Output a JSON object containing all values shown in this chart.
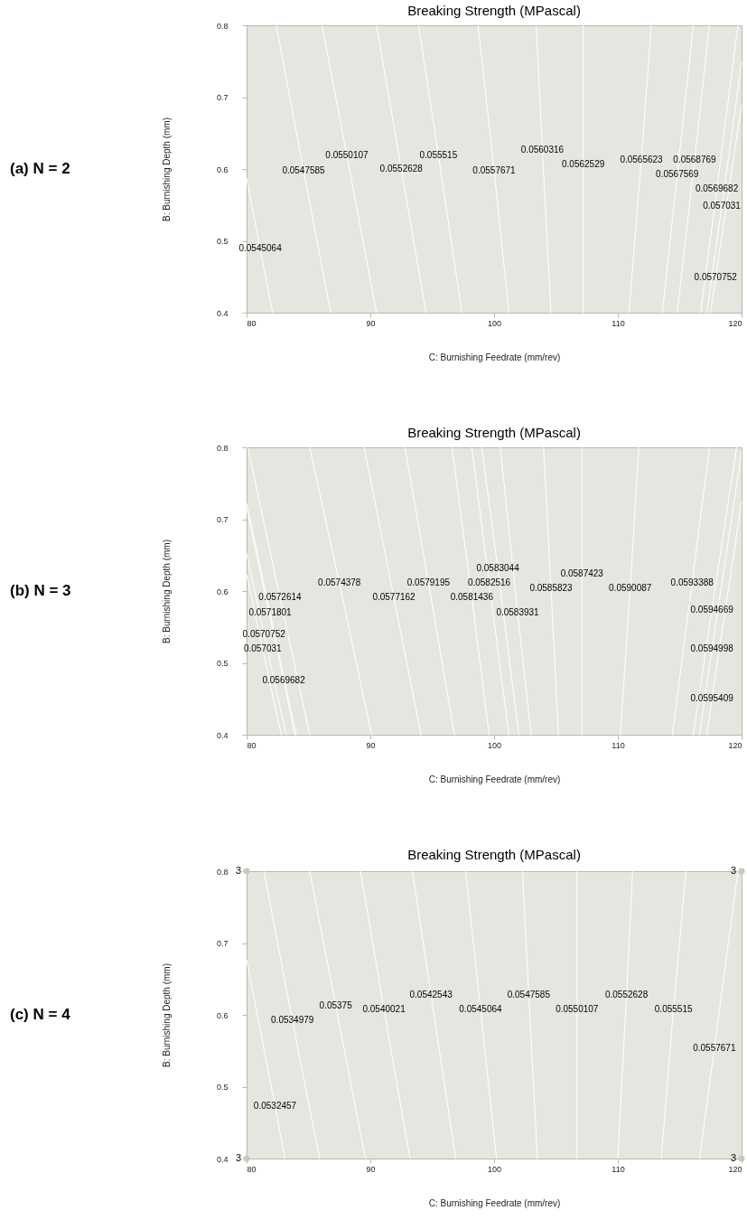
{
  "chart_data": [
    {
      "type": "line",
      "title": "Breaking Strength (MPascal)",
      "xlabel": "C: Burnishing Feedrate (mm/rev)",
      "ylabel": "B: Burnishing Depth (mm)",
      "xlim": [
        80,
        120
      ],
      "xticks": [
        80,
        90,
        100,
        110,
        120
      ],
      "ylim": [
        0.4,
        0.8
      ],
      "yticks": [
        0.4,
        0.5,
        0.6,
        0.7,
        0.8
      ],
      "marker": "none",
      "series": [
        {
          "color": "#ffffff",
          "x": [
            82.1,
            81.1,
            80
          ],
          "values": [
            0.4,
            0.489,
            0.587
          ]
        },
        {
          "color": "#ffffff",
          "x": [
            86.8,
            84.6,
            82.4
          ],
          "values": [
            0.4,
            0.598,
            0.8
          ]
        },
        {
          "color": "#ffffff",
          "x": [
            90.5,
            88.1,
            86.1
          ],
          "values": [
            0.4,
            0.619,
            0.8
          ]
        },
        {
          "color": "#ffffff",
          "x": [
            94.5,
            92.5,
            90.5
          ],
          "values": [
            0.4,
            0.6,
            0.8
          ]
        },
        {
          "color": "#ffffff",
          "x": [
            97.4,
            95.5,
            93.9
          ],
          "values": [
            0.4,
            0.619,
            0.8
          ]
        },
        {
          "color": "#ffffff",
          "x": [
            101.2,
            100,
            98.7
          ],
          "values": [
            0.4,
            0.598,
            0.8
          ]
        },
        {
          "color": "#ffffff",
          "x": [
            104.6,
            103.9,
            103.4
          ],
          "values": [
            0.4,
            0.627,
            0.8
          ]
        },
        {
          "color": "#ffffff",
          "x": [
            107.2,
            107.2,
            107.2
          ],
          "values": [
            0.4,
            0.606,
            0.8
          ]
        },
        {
          "color": "#ffffff",
          "x": [
            110.9,
            111.9,
            112.7
          ],
          "values": [
            0.4,
            0.613,
            0.8
          ]
        },
        {
          "color": "#ffffff",
          "x": [
            113.6,
            114.8,
            116.1
          ],
          "values": [
            0.4,
            0.592,
            0.8
          ]
        },
        {
          "color": "#ffffff",
          "x": [
            114.8,
            116.2,
            117.4
          ],
          "values": [
            0.4,
            0.613,
            0.8
          ]
        },
        {
          "color": "#ffffff",
          "x": [
            116.7,
            118,
            119.7
          ],
          "values": [
            0.4,
            0.572,
            0.8
          ]
        },
        {
          "color": "#ffffff",
          "x": [
            117.2,
            118.4,
            120
          ],
          "values": [
            0.4,
            0.548,
            0.748
          ]
        },
        {
          "color": "#ffffff",
          "x": [
            117.5,
            117.9,
            120
          ],
          "values": [
            0.4,
            0.449,
            0.689
          ]
        }
      ],
      "annotations": [
        "(a)  N = 2",
        {
          "text": "0.0545064",
          "x": 81.1,
          "y": 0.489
        },
        {
          "text": "0.0547585",
          "x": 84.6,
          "y": 0.598
        },
        {
          "text": "0.0550107",
          "x": 88.1,
          "y": 0.619
        },
        {
          "text": "0.0552628",
          "x": 92.5,
          "y": 0.6
        },
        {
          "text": "0.055515",
          "x": 95.5,
          "y": 0.619
        },
        {
          "text": "0.0557671",
          "x": 100,
          "y": 0.598
        },
        {
          "text": "0.0560316",
          "x": 103.9,
          "y": 0.627
        },
        {
          "text": "0.0562529",
          "x": 107.2,
          "y": 0.606
        },
        {
          "text": "0.0565623",
          "x": 111.9,
          "y": 0.613
        },
        {
          "text": "0.0567569",
          "x": 114.8,
          "y": 0.592
        },
        {
          "text": "0.0568769",
          "x": 116.2,
          "y": 0.613
        },
        {
          "text": "0.0569682",
          "x": 118,
          "y": 0.572
        },
        {
          "text": "0.057031",
          "x": 118.4,
          "y": 0.548
        },
        {
          "text": "0.0570752",
          "x": 117.9,
          "y": 0.449
        }
      ]
    },
    {
      "type": "line",
      "title": "Breaking Strength (MPascal)",
      "xlabel": "C: Burnishing Feedrate (mm/rev)",
      "ylabel": "B: Burnishing Depth (mm)",
      "xlim": [
        80,
        120
      ],
      "xticks": [
        80,
        90,
        100,
        110,
        120
      ],
      "ylim": [
        0.4,
        0.8
      ],
      "yticks": [
        0.4,
        0.5,
        0.6,
        0.7,
        0.8
      ],
      "marker": "none",
      "series": [
        {
          "color": "#ffffff",
          "x": [
            83.9,
            83,
            80
          ],
          "values": [
            0.4,
            0.475,
            0.715
          ]
        },
        {
          "color": "#ffffff",
          "x": [
            82.8,
            81.3,
            80
          ],
          "values": [
            0.4,
            0.519,
            0.623
          ]
        },
        {
          "color": "#ffffff",
          "x": [
            83.2,
            81.4,
            80
          ],
          "values": [
            0.4,
            0.54,
            0.652
          ]
        },
        {
          "color": "#ffffff",
          "x": [
            84,
            81.9,
            80
          ],
          "values": [
            0.4,
            0.57,
            0.722
          ]
        },
        {
          "color": "#ffffff",
          "x": [
            85.1,
            82.7,
            80.1
          ],
          "values": [
            0.4,
            0.591,
            0.8
          ]
        },
        {
          "color": "#ffffff",
          "x": [
            90.1,
            87.5,
            85.1
          ],
          "values": [
            0.4,
            0.611,
            0.8
          ]
        },
        {
          "color": "#ffffff",
          "x": [
            94.1,
            91.9,
            89.5
          ],
          "values": [
            0.4,
            0.591,
            0.8
          ]
        },
        {
          "color": "#ffffff",
          "x": [
            96.8,
            94.7,
            92.8
          ],
          "values": [
            0.4,
            0.611,
            0.8
          ]
        },
        {
          "color": "#ffffff",
          "x": [
            99.6,
            98.2,
            96.6
          ],
          "values": [
            0.4,
            0.591,
            0.8
          ]
        },
        {
          "color": "#ffffff",
          "x": [
            101.2,
            99.6,
            98.2
          ],
          "values": [
            0.4,
            0.611,
            0.8
          ]
        },
        {
          "color": "#ffffff",
          "x": [
            102,
            100.3,
            99
          ],
          "values": [
            0.4,
            0.631,
            0.8
          ]
        },
        {
          "color": "#ffffff",
          "x": [
            103,
            101.9,
            100.5
          ],
          "values": [
            0.4,
            0.57,
            0.8
          ]
        },
        {
          "color": "#ffffff",
          "x": [
            105.2,
            104.6,
            104
          ],
          "values": [
            0.4,
            0.604,
            0.8
          ]
        },
        {
          "color": "#ffffff",
          "x": [
            107.1,
            107.1,
            107.1
          ],
          "values": [
            0.4,
            0.624,
            0.8
          ]
        },
        {
          "color": "#ffffff",
          "x": [
            110.2,
            111,
            111.7
          ],
          "values": [
            0.4,
            0.604,
            0.8
          ]
        },
        {
          "color": "#ffffff",
          "x": [
            114.4,
            116,
            117.4
          ],
          "values": [
            0.4,
            0.611,
            0.8
          ]
        },
        {
          "color": "#ffffff",
          "x": [
            116.1,
            117.6,
            119.6
          ],
          "values": [
            0.4,
            0.574,
            0.8
          ]
        },
        {
          "color": "#ffffff",
          "x": [
            116.6,
            117.6,
            120
          ],
          "values": [
            0.4,
            0.519,
            0.793
          ]
        },
        {
          "color": "#ffffff",
          "x": [
            117.2,
            117.6,
            120
          ],
          "values": [
            0.4,
            0.45,
            0.724
          ]
        }
      ],
      "annotations": [
        "(b)  N = 3",
        {
          "text": "0.0569682",
          "x": 83,
          "y": 0.475
        },
        {
          "text": "0.057031",
          "x": 81.3,
          "y": 0.519
        },
        {
          "text": "0.0570752",
          "x": 81.4,
          "y": 0.54
        },
        {
          "text": "0.0571801",
          "x": 81.9,
          "y": 0.57
        },
        {
          "text": "0.0572614",
          "x": 82.7,
          "y": 0.591
        },
        {
          "text": "0.0574378",
          "x": 87.5,
          "y": 0.611
        },
        {
          "text": "0.0577162",
          "x": 91.9,
          "y": 0.591
        },
        {
          "text": "0.0579195",
          "x": 94.7,
          "y": 0.611
        },
        {
          "text": "0.0581436",
          "x": 98.2,
          "y": 0.591
        },
        {
          "text": "0.0582516",
          "x": 99.6,
          "y": 0.611
        },
        {
          "text": "0.0583044",
          "x": 100.3,
          "y": 0.631
        },
        {
          "text": "0.0583931",
          "x": 101.9,
          "y": 0.57
        },
        {
          "text": "0.0585823",
          "x": 104.6,
          "y": 0.604
        },
        {
          "text": "0.0587423",
          "x": 107.1,
          "y": 0.624
        },
        {
          "text": "0.0590087",
          "x": 111,
          "y": 0.604
        },
        {
          "text": "0.0593388",
          "x": 116,
          "y": 0.611
        },
        {
          "text": "0.0594669",
          "x": 117.6,
          "y": 0.574
        },
        {
          "text": "0.0594998",
          "x": 117.6,
          "y": 0.519
        },
        {
          "text": "0.0595409",
          "x": 117.6,
          "y": 0.45
        }
      ]
    },
    {
      "type": "line",
      "title": "Breaking Strength (MPascal)",
      "xlabel": "C: Burnishing Feedrate (mm/rev)",
      "ylabel": "B: Burnishing Depth (mm)",
      "xlim": [
        80,
        120
      ],
      "xticks": [
        80,
        90,
        100,
        110,
        120
      ],
      "ylim": [
        0.4,
        0.8
      ],
      "yticks": [
        0.4,
        0.5,
        0.6,
        0.7,
        0.8
      ],
      "marker": "none",
      "series": [
        {
          "color": "#ffffff",
          "x": [
            83.1,
            82.3,
            80
          ],
          "values": [
            0.4,
            0.473,
            0.677
          ]
        },
        {
          "color": "#ffffff",
          "x": [
            85.9,
            83.7,
            81.4
          ],
          "values": [
            0.4,
            0.592,
            0.8
          ]
        },
        {
          "color": "#ffffff",
          "x": [
            89.6,
            87.2,
            85.1
          ],
          "values": [
            0.4,
            0.613,
            0.8
          ]
        },
        {
          "color": "#ffffff",
          "x": [
            93.2,
            91.1,
            89.2
          ],
          "values": [
            0.4,
            0.608,
            0.8
          ]
        },
        {
          "color": "#ffffff",
          "x": [
            96.9,
            94.9,
            93.4
          ],
          "values": [
            0.4,
            0.628,
            0.8
          ]
        },
        {
          "color": "#ffffff",
          "x": [
            100.2,
            98.9,
            97.7
          ],
          "values": [
            0.4,
            0.608,
            0.8
          ]
        },
        {
          "color": "#ffffff",
          "x": [
            103.5,
            102.8,
            102.3
          ],
          "values": [
            0.4,
            0.628,
            0.8
          ]
        },
        {
          "color": "#ffffff",
          "x": [
            106.7,
            106.7,
            106.7
          ],
          "values": [
            0.4,
            0.608,
            0.8
          ]
        },
        {
          "color": "#ffffff",
          "x": [
            110,
            110.7,
            111.2
          ],
          "values": [
            0.4,
            0.628,
            0.8
          ]
        },
        {
          "color": "#ffffff",
          "x": [
            113.5,
            114.5,
            115.5
          ],
          "values": [
            0.4,
            0.608,
            0.8
          ]
        },
        {
          "color": "#ffffff",
          "x": [
            116.6,
            117.8,
            119.7
          ],
          "values": [
            0.4,
            0.554,
            0.8
          ]
        },
        {
          "type": "scatter",
          "color": "#c8c8bc",
          "marker": "circle",
          "x": [
            80,
            120,
            80,
            120
          ],
          "values": [
            0.8,
            0.8,
            0.4,
            0.4
          ]
        }
      ],
      "annotations": [
        "(c)  N = 4",
        {
          "text": "3",
          "x": 80,
          "y": 0.8
        },
        {
          "text": "3",
          "x": 120,
          "y": 0.8
        },
        {
          "text": "3",
          "x": 80,
          "y": 0.4
        },
        {
          "text": "3",
          "x": 120,
          "y": 0.4
        },
        {
          "text": "0.0532457",
          "x": 82.3,
          "y": 0.473
        },
        {
          "text": "0.0534979",
          "x": 83.7,
          "y": 0.592
        },
        {
          "text": "0.05375",
          "x": 87.2,
          "y": 0.613
        },
        {
          "text": "0.0540021",
          "x": 91.1,
          "y": 0.608
        },
        {
          "text": "0.0542543",
          "x": 94.9,
          "y": 0.628
        },
        {
          "text": "0.0545064",
          "x": 98.9,
          "y": 0.608
        },
        {
          "text": "0.0547585",
          "x": 102.8,
          "y": 0.628
        },
        {
          "text": "0.0550107",
          "x": 106.7,
          "y": 0.608
        },
        {
          "text": "0.0552628",
          "x": 110.7,
          "y": 0.628
        },
        {
          "text": "0.055515",
          "x": 114.5,
          "y": 0.608
        },
        {
          "text": "0.0557671",
          "x": 117.8,
          "y": 0.554
        }
      ]
    }
  ]
}
